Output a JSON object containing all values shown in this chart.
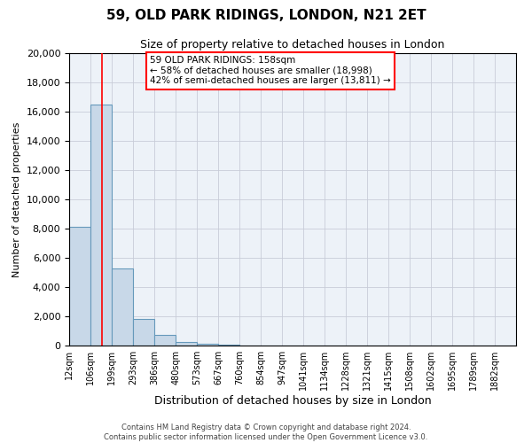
{
  "title_line1": "59, OLD PARK RIDINGS, LONDON, N21 2ET",
  "title_line2": "Size of property relative to detached houses in London",
  "xlabel": "Distribution of detached houses by size in London",
  "ylabel": "Number of detached properties",
  "bar_labels": [
    "12sqm",
    "106sqm",
    "199sqm",
    "293sqm",
    "386sqm",
    "480sqm",
    "573sqm",
    "667sqm",
    "760sqm",
    "854sqm",
    "947sqm",
    "1041sqm",
    "1134sqm",
    "1228sqm",
    "1321sqm",
    "1415sqm",
    "1508sqm",
    "1602sqm",
    "1695sqm",
    "1789sqm",
    "1882sqm"
  ],
  "bar_values": [
    8100,
    16500,
    5300,
    1800,
    750,
    250,
    150,
    70,
    30,
    10,
    5,
    2,
    2,
    1,
    1,
    1,
    0,
    0,
    0,
    0,
    0
  ],
  "bar_color": "#c8d8e8",
  "bar_edge_color": "#6699bb",
  "background_color": "#edf2f8",
  "grid_color": "#c8ccd8",
  "property_label": "59 OLD PARK RIDINGS: 158sqm",
  "annotation_line1": "← 58% of detached houses are smaller (18,998)",
  "annotation_line2": "42% of semi-detached houses are larger (13,811) →",
  "red_line_x": 158,
  "ylim": [
    0,
    20000
  ],
  "yticks": [
    0,
    2000,
    4000,
    6000,
    8000,
    10000,
    12000,
    14000,
    16000,
    18000,
    20000
  ],
  "bin_edges": [
    12,
    106,
    199,
    293,
    386,
    480,
    573,
    667,
    760,
    854,
    947,
    1041,
    1134,
    1228,
    1321,
    1415,
    1508,
    1602,
    1695,
    1789,
    1882
  ],
  "footer_line1": "Contains HM Land Registry data © Crown copyright and database right 2024.",
  "footer_line2": "Contains public sector information licensed under the Open Government Licence v3.0."
}
